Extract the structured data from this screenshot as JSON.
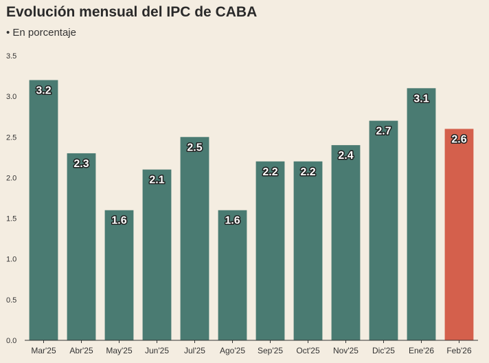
{
  "header": {
    "title": "Evolución mensual del IPC de CABA",
    "subtitle": "• En porcentaje"
  },
  "colors": {
    "background": "#f4ede1",
    "bar": "#4a7b72",
    "highlight": "#d4604c",
    "axis": "#333333"
  },
  "chart_data": {
    "type": "bar",
    "title": "Evolución mensual del IPC de CABA",
    "subtitle": "• En porcentaje",
    "xlabel": "",
    "ylabel": "",
    "categories": [
      "Mar'25",
      "Abr'25",
      "May'25",
      "Jun'25",
      "Jul'25",
      "Ago'25",
      "Sep'25",
      "Oct'25",
      "Nov'25",
      "Dic'25",
      "Ene'26",
      "Feb'26"
    ],
    "values": [
      3.2,
      2.3,
      1.6,
      2.1,
      2.5,
      1.6,
      2.2,
      2.2,
      2.4,
      2.7,
      3.1,
      2.6
    ],
    "value_labels": [
      "3.2",
      "2.3",
      "1.6",
      "2.1",
      "2.5",
      "1.6",
      "2.2",
      "2.2",
      "2.4",
      "2.7",
      "3.1",
      "2.6"
    ],
    "highlight_categories": [
      "Feb'26"
    ],
    "ylim": [
      0,
      3.5
    ],
    "yticks": [
      0,
      0.5,
      1,
      1.5,
      2,
      2.5,
      3,
      3.5
    ],
    "ytick_labels": [
      "0.0",
      "0.5",
      "1.0",
      "1.5",
      "2.0",
      "2.5",
      "3.0",
      "3.5"
    ],
    "grid": false,
    "legend": "none"
  }
}
